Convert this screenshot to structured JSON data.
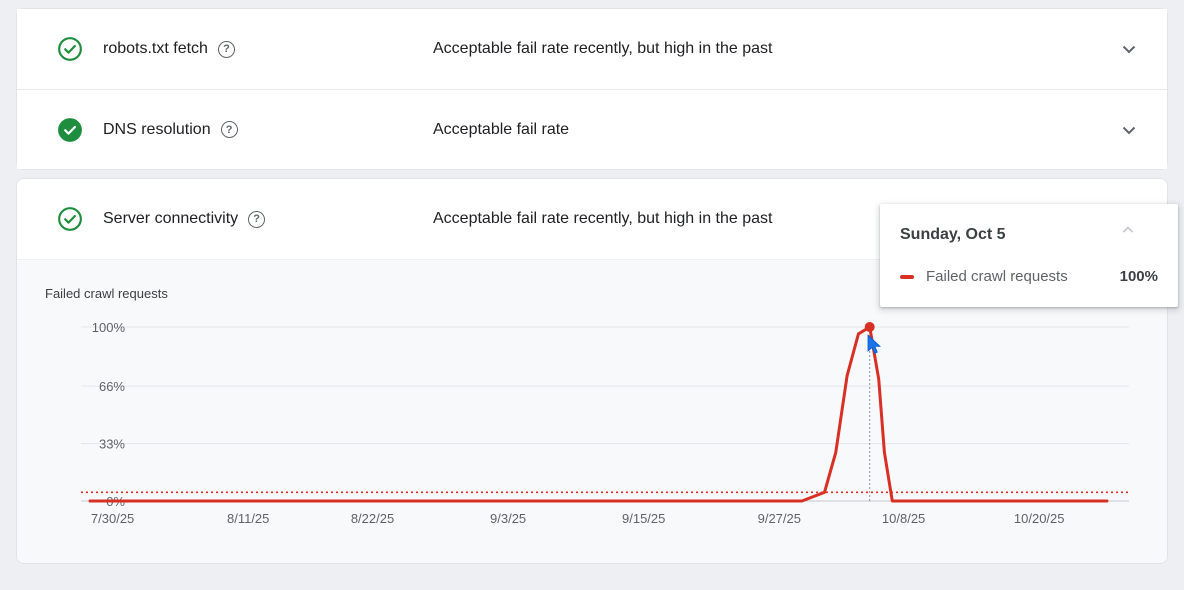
{
  "colors": {
    "success_green": "#1e8e3e",
    "line_red": "#d93025",
    "page_bg": "#edeff2"
  },
  "icons": {
    "help_glyph": "?"
  },
  "status_rows": [
    {
      "label": "robots.txt fetch",
      "status": "Acceptable fail rate recently, but high in the past",
      "icon": "check-circle-outline"
    },
    {
      "label": "DNS resolution",
      "status": "Acceptable fail rate",
      "icon": "check-circle-filled"
    },
    {
      "label": "Server connectivity",
      "status": "Acceptable fail rate recently, but high in the past",
      "icon": "check-circle-outline"
    }
  ],
  "tooltip": {
    "title": "Sunday, Oct 5",
    "series_label": "Failed crawl requests",
    "value": "100%"
  },
  "chart_data": {
    "type": "line",
    "title": "Failed crawl requests",
    "ylim": [
      0,
      100
    ],
    "grid": true,
    "legend_position": "tooltip",
    "y_ticks": [
      {
        "pct": 100,
        "label": "100%"
      },
      {
        "pct": 66,
        "label": "66%"
      },
      {
        "pct": 33,
        "label": "33%"
      },
      {
        "pct": 0,
        "label": "0%"
      }
    ],
    "x_ticks": [
      {
        "day": 0,
        "label": "7/30/25"
      },
      {
        "day": 12,
        "label": "8/11/25"
      },
      {
        "day": 23,
        "label": "8/22/25"
      },
      {
        "day": 35,
        "label": "9/3/25"
      },
      {
        "day": 47,
        "label": "9/15/25"
      },
      {
        "day": 59,
        "label": "9/27/25"
      },
      {
        "day": 70,
        "label": "10/8/25"
      },
      {
        "day": 82,
        "label": "10/20/25"
      }
    ],
    "x_range_days": [
      -2,
      88
    ],
    "x_units": "days since 7/30/25",
    "threshold_pct": 5,
    "hover": {
      "day": 67,
      "pct": 100,
      "date_label": "Sunday, Oct 5",
      "value_label": "100%"
    },
    "series": [
      {
        "name": "Failed crawl requests",
        "color": "#d93025",
        "points": [
          [
            -2,
            0
          ],
          [
            61,
            0
          ],
          [
            63,
            5
          ],
          [
            64,
            28
          ],
          [
            65,
            72
          ],
          [
            66,
            96
          ],
          [
            67,
            100
          ],
          [
            67.8,
            70
          ],
          [
            68.3,
            28
          ],
          [
            69,
            0
          ],
          [
            88,
            0
          ]
        ]
      }
    ],
    "colors": {
      "grid": "#e4e6e9",
      "axis": "#c6c9cd",
      "tick_text": "#5f6368",
      "hover_line": "#8a9096",
      "threshold": "#d93025"
    }
  }
}
